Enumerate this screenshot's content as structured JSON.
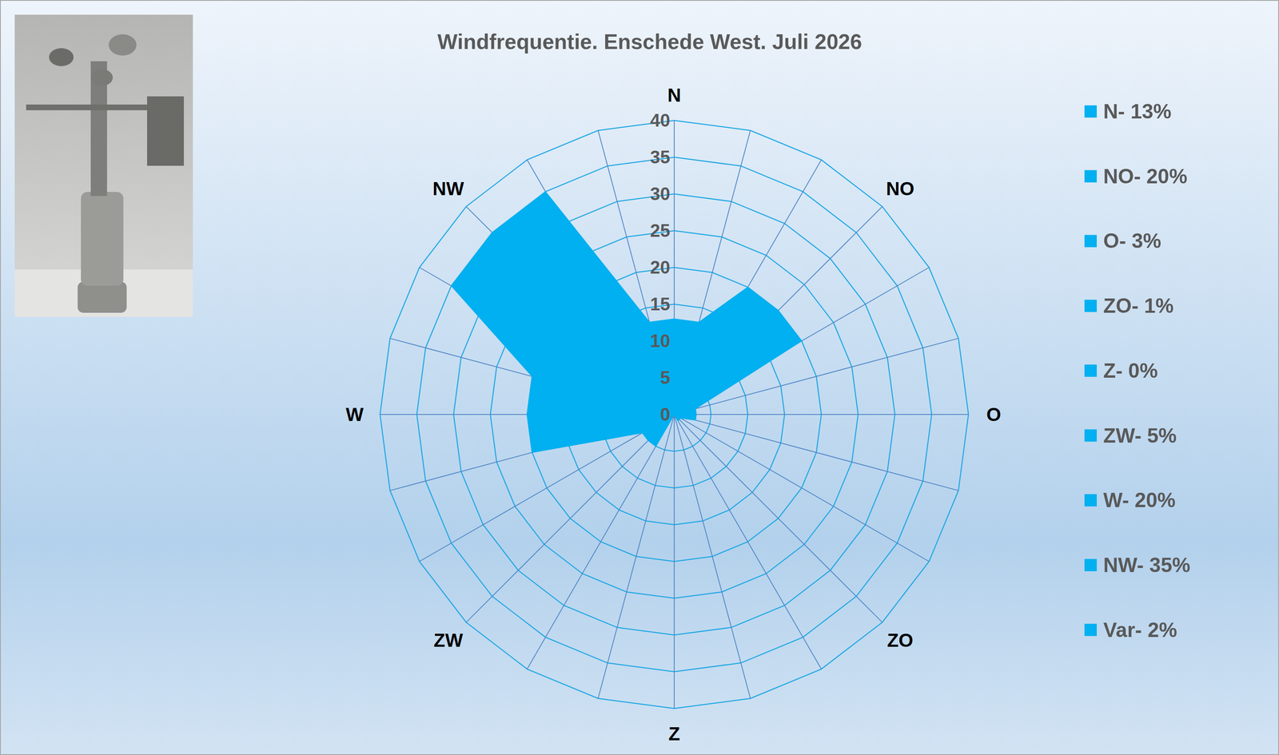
{
  "chart_data": {
    "type": "radar",
    "title": "Windfrequentie. Enschede West. Juli 2026",
    "categories": [
      "N",
      null,
      null,
      "NO",
      null,
      null,
      "O",
      null,
      null,
      "ZO",
      null,
      null,
      "Z",
      null,
      null,
      "ZW",
      null,
      null,
      "W",
      null,
      null,
      "NW",
      null,
      null
    ],
    "values": [
      13,
      13,
      20,
      20,
      20,
      3,
      3,
      3,
      1,
      1,
      1,
      0,
      0,
      0,
      5,
      5,
      5,
      20,
      20,
      20,
      35,
      35,
      35,
      13
    ],
    "color": "#00b0f0",
    "ylim": [
      0,
      40
    ],
    "yticks": [
      0,
      5,
      10,
      15,
      20,
      25,
      30,
      35,
      40
    ],
    "grid": true,
    "legend": "right",
    "legend_items": [
      "N- 13%",
      "NO- 20%",
      "O- 3%",
      "ZO- 1%",
      "Z- 0%",
      "ZW- 5%",
      "W- 20%",
      "NW- 35%",
      "Var- 2%"
    ]
  }
}
